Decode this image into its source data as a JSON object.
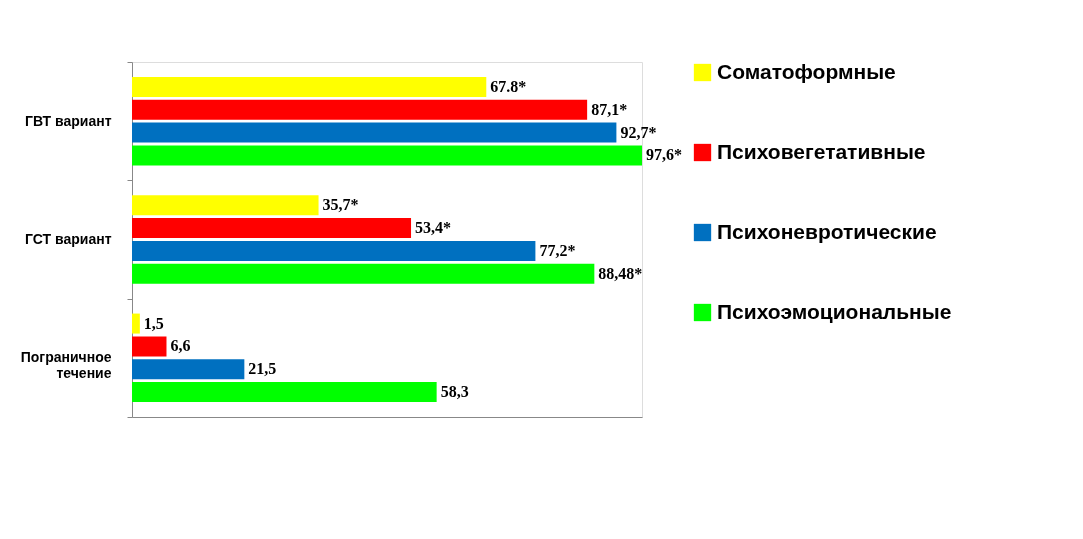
{
  "chart_data": {
    "type": "bar",
    "orientation": "horizontal",
    "categories": [
      "ГВТ вариант",
      "ГСТ вариант",
      "Пограничное течение"
    ],
    "series": [
      {
        "name": "Соматоформные",
        "color": "#ffff00",
        "values": [
          67.8,
          35.7,
          1.5
        ],
        "value_labels": [
          "67.8*",
          "35,7*",
          "1,5"
        ]
      },
      {
        "name": "Психовегетативные",
        "color": "#ff0000",
        "values": [
          87.1,
          53.4,
          6.6
        ],
        "value_labels": [
          "87,1*",
          "53,4*",
          "6,6"
        ]
      },
      {
        "name": "Психоневротические",
        "color": "#0070c0",
        "values": [
          92.7,
          77.2,
          21.5
        ],
        "value_labels": [
          "92,7*",
          "77,2*",
          "21,5"
        ]
      },
      {
        "name": "Психоэмоциональные",
        "color": "#00ff00",
        "values": [
          97.6,
          88.48,
          58.3
        ],
        "value_labels": [
          "97,6*",
          "88,48*",
          "58,3"
        ]
      }
    ],
    "legend": "right",
    "grid": false,
    "tick_labels": "y"
  }
}
